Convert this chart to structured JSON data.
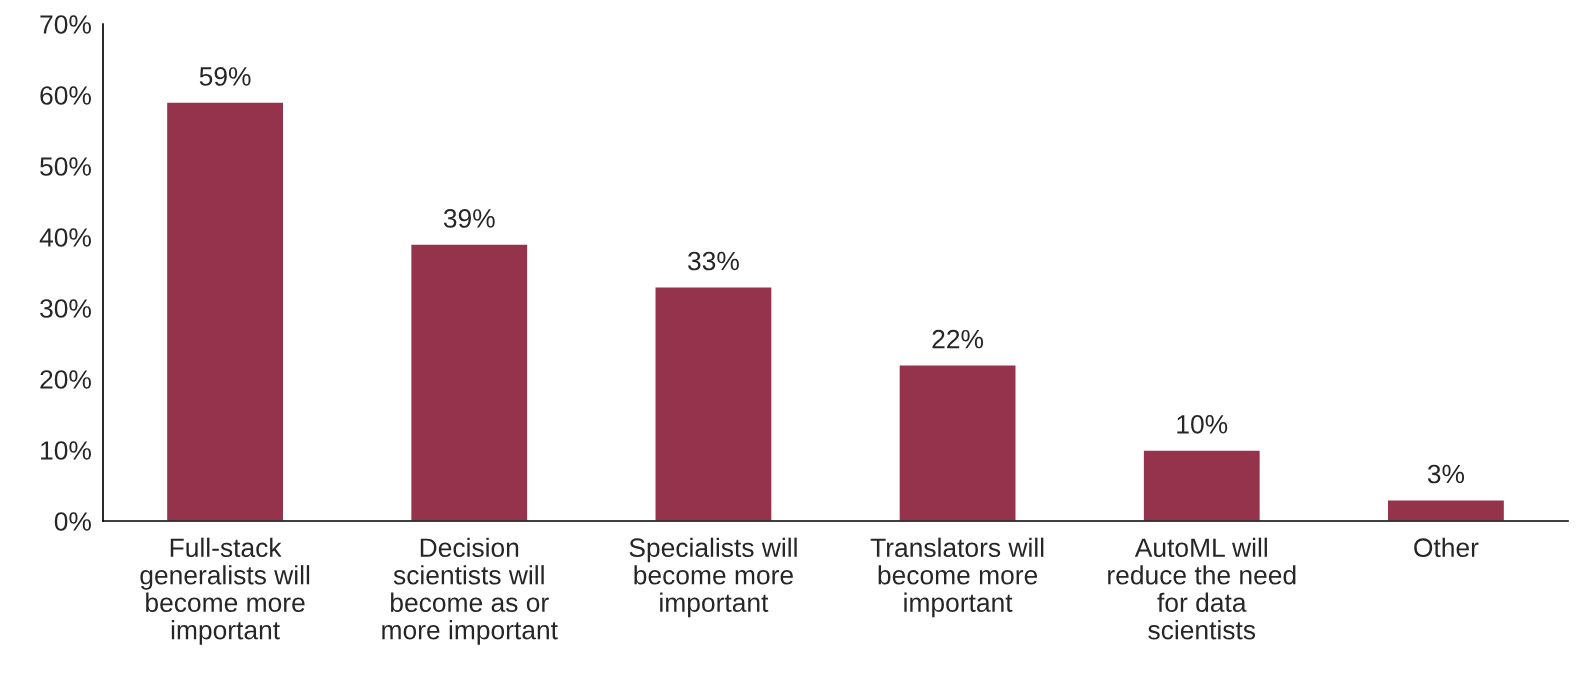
{
  "chart_data": {
    "type": "bar",
    "categories": [
      "Full-stack generalists will become more important",
      "Decision scientists will become as or more important",
      "Specialists will become more important",
      "Translators will become more important",
      "AutoML will reduce the need for data scientists",
      "Other"
    ],
    "values": [
      59,
      39,
      33,
      22,
      10,
      3
    ],
    "value_labels": [
      "59%",
      "39%",
      "33%",
      "22%",
      "10%",
      "3%"
    ],
    "color": "#96334c",
    "ylim": [
      0,
      70
    ],
    "yticks": [
      {
        "value": 0,
        "label": "0%"
      },
      {
        "value": 10,
        "label": "10%"
      },
      {
        "value": 20,
        "label": "20%"
      },
      {
        "value": 30,
        "label": "30%"
      },
      {
        "value": 40,
        "label": "40%"
      },
      {
        "value": 50,
        "label": "50%"
      },
      {
        "value": 60,
        "label": "60%"
      },
      {
        "value": 70,
        "label": "70%"
      }
    ],
    "grid": false,
    "legend": false
  }
}
